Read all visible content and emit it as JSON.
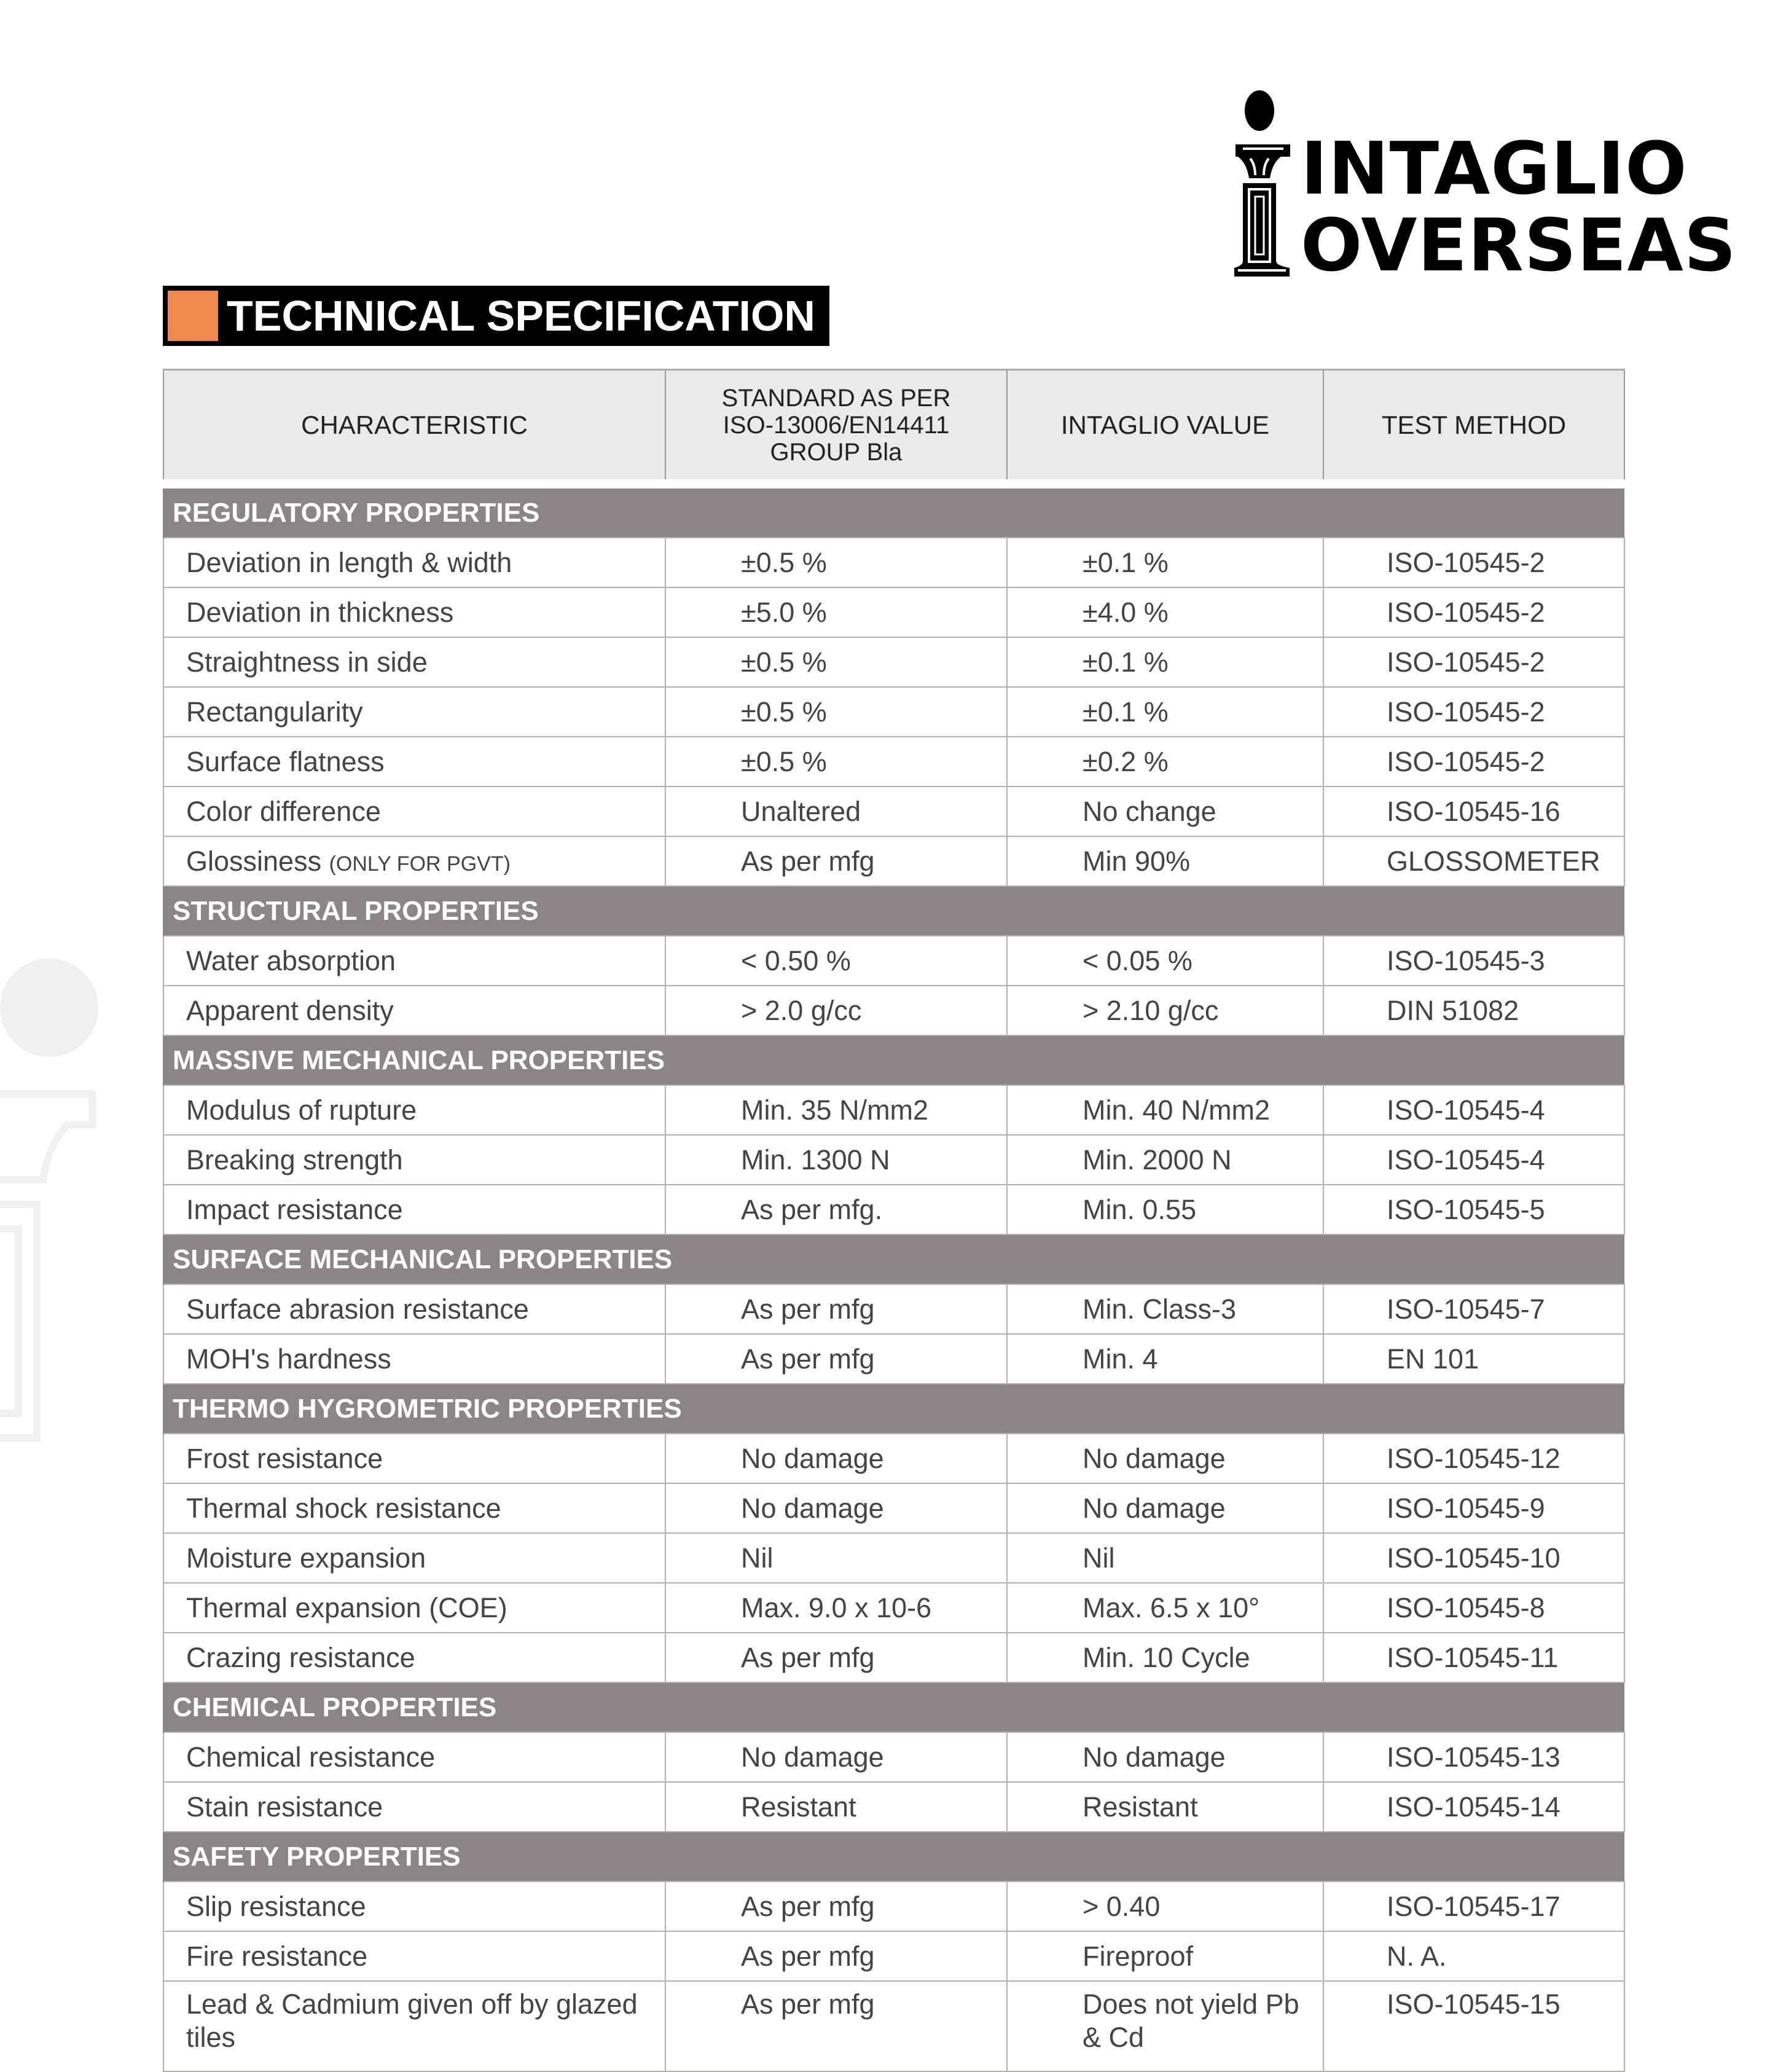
{
  "brand": {
    "line1": "INTAGLIO",
    "line2": "OVERSEAS"
  },
  "title": "TECHNICAL SPECIFICATION",
  "colors": {
    "accent": "#ef8a4c",
    "section_band": "#8c8585",
    "header_bg": "#e9eaec"
  },
  "columns": [
    "CHARACTERISTIC",
    "STANDARD AS PER ISO-13006/EN14411 GROUP BIa",
    "INTAGLIO VALUE",
    "TEST METHOD"
  ],
  "columns_std_lines": [
    "STANDARD AS PER",
    "ISO-13006/EN14411",
    "GROUP Bla"
  ],
  "sections": [
    {
      "title": "REGULATORY PROPERTIES",
      "rows": [
        [
          "Deviation in length & width",
          "±0.5 %",
          "±0.1 %",
          "ISO-10545-2"
        ],
        [
          "Deviation in thickness",
          "±5.0 %",
          "±4.0 %",
          "ISO-10545-2"
        ],
        [
          "Straightness in side",
          "±0.5 %",
          "±0.1 %",
          "ISO-10545-2"
        ],
        [
          "Rectangularity",
          "±0.5 %",
          "±0.1 %",
          "ISO-10545-2"
        ],
        [
          "Surface flatness",
          "±0.5 %",
          "±0.2 %",
          "ISO-10545-2"
        ],
        [
          "Color difference",
          "Unaltered",
          "No change",
          "ISO-10545-16"
        ],
        [
          "Glossiness",
          "As per mfg",
          "Min 90%",
          "GLOSSOMETER"
        ]
      ]
    },
    {
      "title": "STRUCTURAL PROPERTIES",
      "rows": [
        [
          "Water absorption",
          "< 0.50 %",
          "< 0.05 %",
          "ISO-10545-3"
        ],
        [
          "Apparent density",
          "> 2.0 g/cc",
          "> 2.10 g/cc",
          "DIN 51082"
        ]
      ]
    },
    {
      "title": "MASSIVE MECHANICAL  PROPERTIES",
      "rows": [
        [
          "Modulus of rupture",
          "Min. 35 N/mm2",
          "Min. 40 N/mm2",
          "ISO-10545-4"
        ],
        [
          "Breaking strength",
          "Min. 1300 N",
          "Min. 2000 N",
          "ISO-10545-4"
        ],
        [
          "Impact resistance",
          "As per mfg.",
          "Min. 0.55",
          "ISO-10545-5"
        ]
      ]
    },
    {
      "title": "SURFACE  MECHANICAL  PROPERTIES",
      "rows": [
        [
          "Surface abrasion resistance",
          "As per mfg",
          "Min. Class-3",
          "ISO-10545-7"
        ],
        [
          "MOH's hardness",
          "As per mfg",
          "Min. 4",
          "EN 101"
        ]
      ]
    },
    {
      "title": "THERMO HYGROMETRIC  PROPERTIES",
      "rows": [
        [
          "Frost resistance",
          "No damage",
          "No damage",
          "ISO-10545-12"
        ],
        [
          "Thermal shock resistance",
          "No damage",
          "No damage",
          "ISO-10545-9"
        ],
        [
          "Moisture expansion",
          "Nil",
          "Nil",
          "ISO-10545-10"
        ],
        [
          "Thermal expansion (COE)",
          "Max. 9.0 x 10-6",
          "Max. 6.5 x 10°",
          "ISO-10545-8"
        ],
        [
          "Crazing resistance",
          "As per mfg",
          "Min. 10 Cycle",
          "ISO-10545-11"
        ]
      ]
    },
    {
      "title": "CHEMICAL PROPERTIES",
      "rows": [
        [
          "Chemical resistance",
          "No damage",
          "No damage",
          "ISO-10545-13"
        ],
        [
          "Stain resistance",
          "Resistant",
          "Resistant",
          "ISO-10545-14"
        ]
      ]
    },
    {
      "title": "SAFETY PROPERTIES",
      "rows": [
        [
          "Slip resistance",
          "As per mfg",
          "> 0.40",
          "ISO-10545-17"
        ],
        [
          "Fire resistance",
          "As per mfg",
          "Fireproof",
          "N. A."
        ],
        [
          "Lead & Cadmium given off by glazed tiles",
          "As per mfg",
          "Does not yield Pb & Cd",
          "ISO-10545-15"
        ]
      ]
    }
  ],
  "notes": {
    "glossiness_suffix": "(ONLY FOR PGVT)"
  }
}
